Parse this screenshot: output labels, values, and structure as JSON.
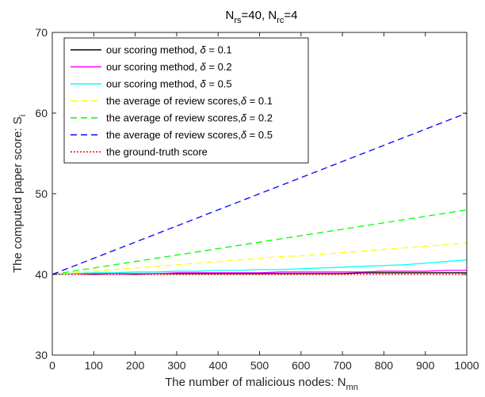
{
  "chart_data": {
    "type": "line",
    "title": "N",
    "title_parts": {
      "n1": "N",
      "s1": "rs",
      "m1": "=40, N",
      "s2": "rc",
      "m2": "=4"
    },
    "xlabel": "The number of malicious nodes: N",
    "xlabel_sub": "mn",
    "ylabel": "The computed paper score: S",
    "ylabel_sub": "i",
    "xlim": [
      0,
      1000
    ],
    "ylim": [
      30,
      70
    ],
    "xticks": [
      0,
      100,
      200,
      300,
      400,
      500,
      600,
      700,
      800,
      900,
      1000
    ],
    "yticks": [
      30,
      40,
      50,
      60,
      70
    ],
    "grid": false,
    "legend_position": "top-left",
    "x": [
      0,
      50,
      100,
      150,
      200,
      250,
      300,
      350,
      400,
      450,
      500,
      550,
      600,
      650,
      700,
      750,
      800,
      850,
      900,
      950,
      1000
    ],
    "series": [
      {
        "name": "our scoring method, δ = 0.1",
        "legend_prefix": "our scoring method, ",
        "legend_suffix": " = 0.1",
        "color": "#000000",
        "dash": "solid",
        "values": [
          40.0,
          40.1,
          40.0,
          40.1,
          40.0,
          40.1,
          40.1,
          40.1,
          40.1,
          40.1,
          40.1,
          40.1,
          40.1,
          40.1,
          40.1,
          40.2,
          40.2,
          40.2,
          40.2,
          40.2,
          40.2
        ]
      },
      {
        "name": "our scoring method, δ = 0.2",
        "legend_prefix": "our scoring method, ",
        "legend_suffix": " = 0.2",
        "color": "#ff00ff",
        "dash": "solid",
        "values": [
          40.0,
          40.1,
          40.1,
          40.1,
          40.1,
          40.1,
          40.2,
          40.2,
          40.2,
          40.2,
          40.2,
          40.3,
          40.3,
          40.3,
          40.3,
          40.3,
          40.4,
          40.4,
          40.4,
          40.5,
          40.5
        ]
      },
      {
        "name": "our scoring method, δ = 0.5",
        "legend_prefix": "our scoring method, ",
        "legend_suffix": " = 0.5",
        "color": "#00ffff",
        "dash": "solid",
        "values": [
          40.0,
          40.1,
          40.2,
          40.2,
          40.3,
          40.3,
          40.4,
          40.4,
          40.5,
          40.5,
          40.6,
          40.6,
          40.7,
          40.8,
          40.9,
          41.0,
          41.1,
          41.2,
          41.4,
          41.6,
          41.8
        ]
      },
      {
        "name": "the average of review scores,δ = 0.1",
        "legend_prefix": "the average of review scores,",
        "legend_suffix": " = 0.1",
        "color": "#ffff00",
        "dash": "dashed",
        "values": [
          40.0,
          40.2,
          40.4,
          40.6,
          40.8,
          41.0,
          41.2,
          41.4,
          41.6,
          41.8,
          42.0,
          42.2,
          42.3,
          42.5,
          42.7,
          42.9,
          43.1,
          43.3,
          43.5,
          43.7,
          43.9
        ]
      },
      {
        "name": "the average of review scores,δ = 0.2",
        "legend_prefix": "the average of review scores,",
        "legend_suffix": " = 0.2",
        "color": "#00ff00",
        "dash": "dashed",
        "values": [
          40.0,
          40.4,
          40.8,
          41.2,
          41.6,
          42.0,
          42.4,
          42.8,
          43.2,
          43.6,
          44.0,
          44.4,
          44.8,
          45.2,
          45.6,
          46.0,
          46.4,
          46.8,
          47.2,
          47.6,
          48.0
        ]
      },
      {
        "name": "the average of review scores,δ = 0.5",
        "legend_prefix": "the average of review scores,",
        "legend_suffix": " = 0.5",
        "color": "#0000ff",
        "dash": "dashed",
        "values": [
          40.0,
          41.0,
          42.0,
          43.0,
          44.0,
          45.0,
          46.0,
          47.0,
          48.0,
          49.0,
          50.0,
          51.0,
          52.0,
          53.0,
          54.0,
          55.0,
          56.0,
          57.0,
          58.0,
          59.0,
          60.0
        ]
      },
      {
        "name": "the ground-truth score",
        "legend_prefix": "the ground-truth score",
        "legend_suffix": "",
        "color": "#ff0000",
        "dash": "dotted",
        "values": [
          40.0,
          40.0,
          40.0,
          40.0,
          40.0,
          40.0,
          40.0,
          40.0,
          40.0,
          40.0,
          40.0,
          40.0,
          40.0,
          40.0,
          40.0,
          40.0,
          40.0,
          40.0,
          40.0,
          40.0,
          40.0
        ]
      }
    ]
  }
}
